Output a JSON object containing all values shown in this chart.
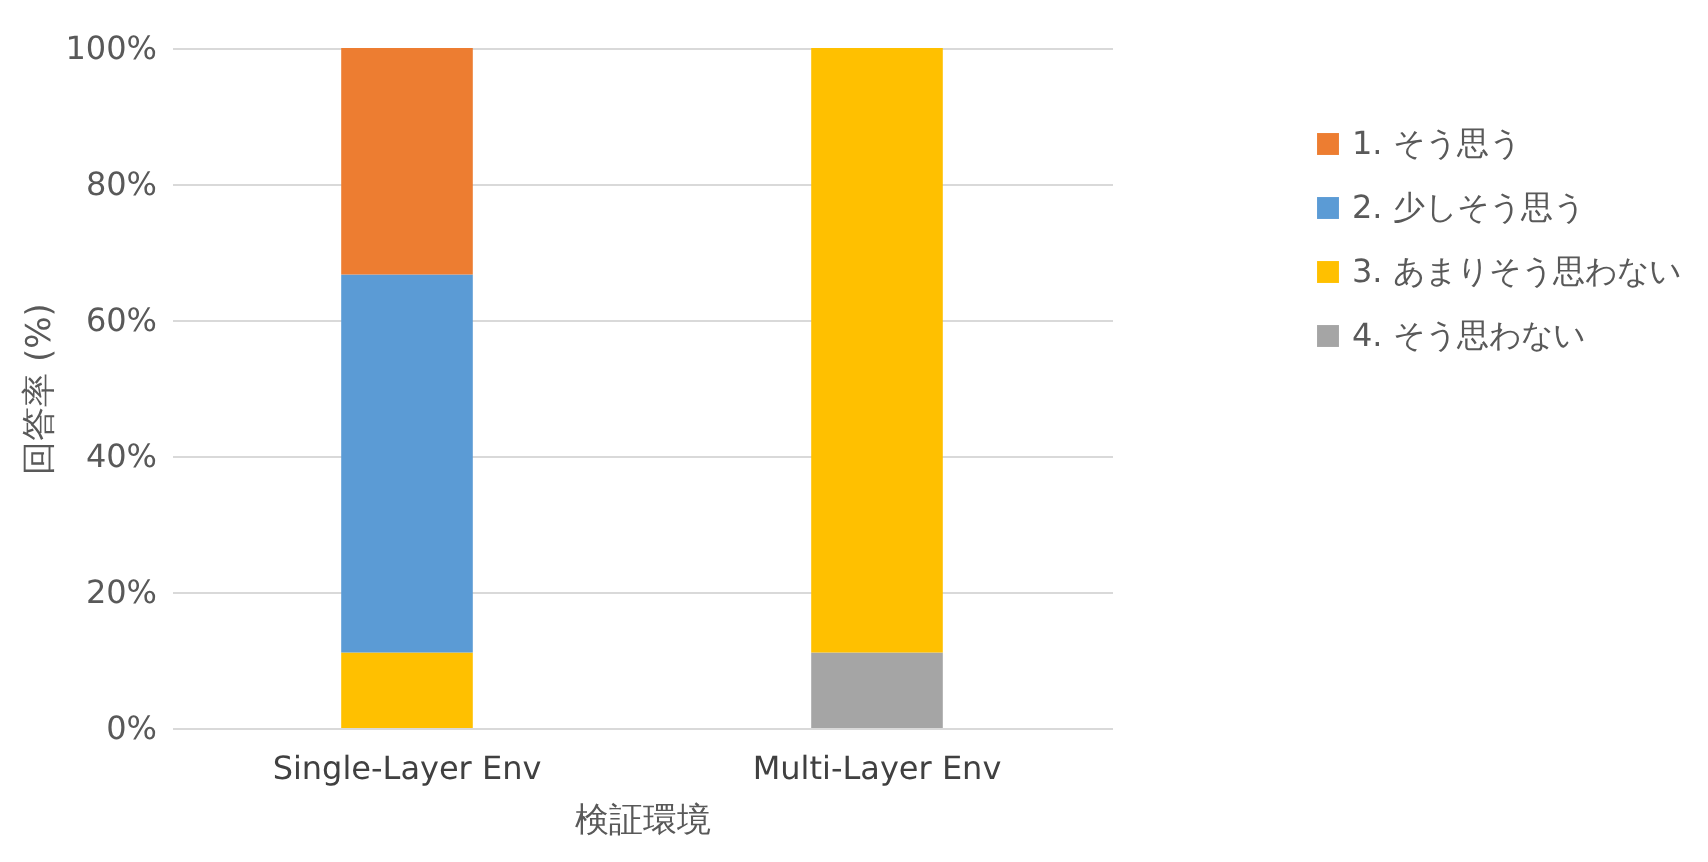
{
  "chart_data": {
    "type": "bar",
    "stacked": true,
    "xlabel": "検証環境",
    "ylabel": "回答率 (%)",
    "categories": [
      "Single-Layer Env",
      "Multi-Layer Env"
    ],
    "series": [
      {
        "name": "4. そう思わない",
        "color": "#a5a5a5",
        "values": [
          0,
          11.1
        ]
      },
      {
        "name": "3. あまりそう思わない",
        "color": "#ffc000",
        "values": [
          11.1,
          88.9
        ]
      },
      {
        "name": "2. 少しそう思う",
        "color": "#5b9bd5",
        "values": [
          55.6,
          0
        ]
      },
      {
        "name": "1. そう思う",
        "color": "#ed7d31",
        "values": [
          33.3,
          0
        ]
      }
    ],
    "ylim": [
      0,
      100
    ],
    "yticks": [
      {
        "value": 0,
        "label": "0%"
      },
      {
        "value": 20,
        "label": "20%"
      },
      {
        "value": 40,
        "label": "40%"
      },
      {
        "value": 60,
        "label": "60%"
      },
      {
        "value": 80,
        "label": "80%"
      },
      {
        "value": 100,
        "label": "100%"
      }
    ],
    "grid": "y",
    "legend": "right"
  }
}
